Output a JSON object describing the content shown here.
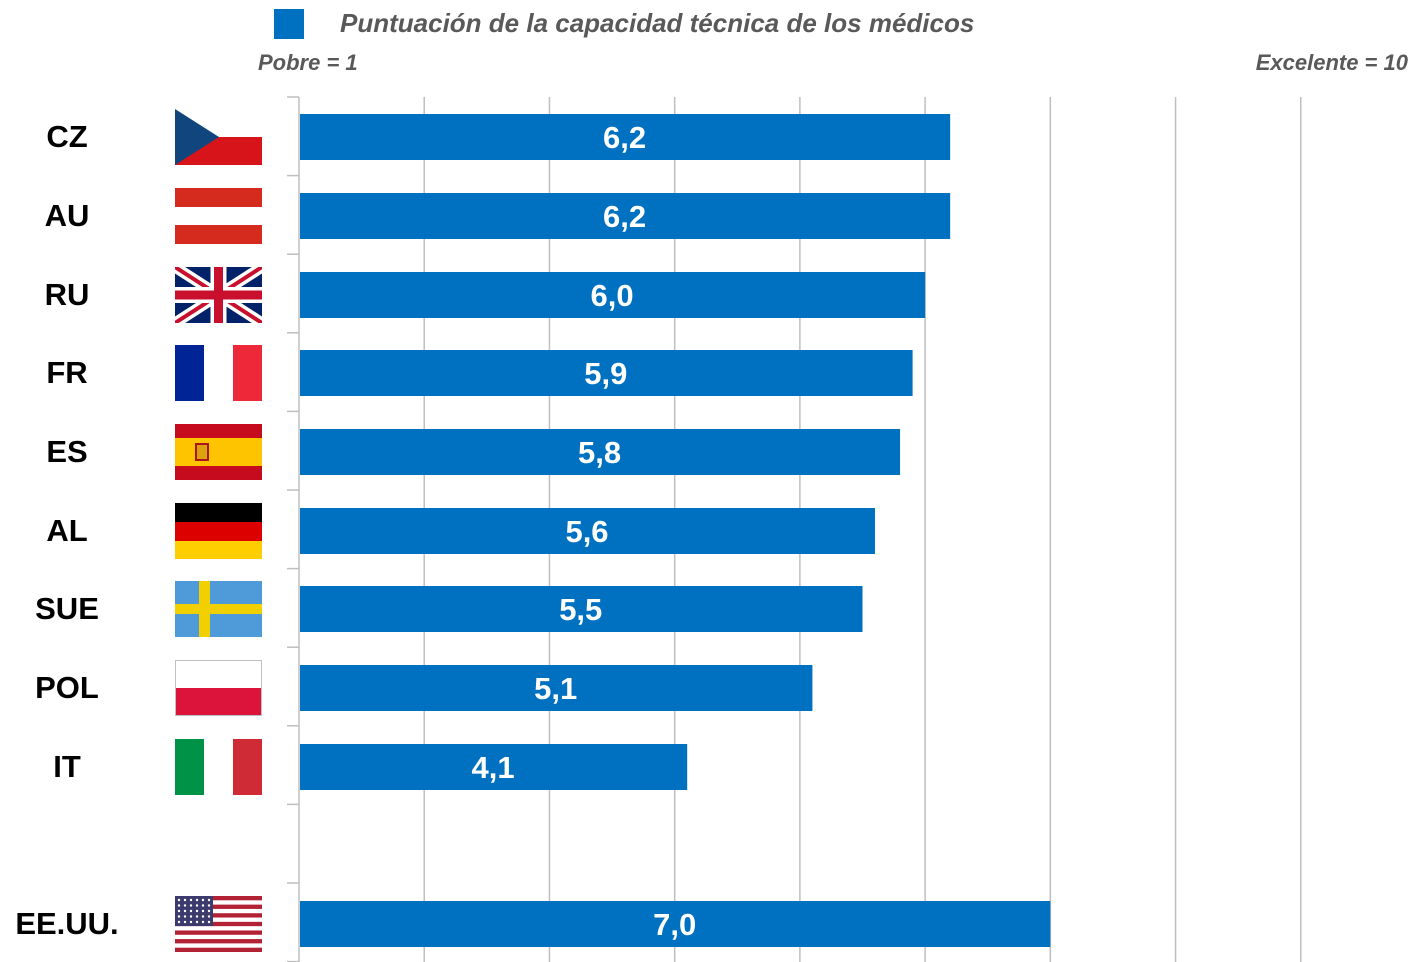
{
  "legend": {
    "label": "Puntuación de la capacidad técnica de los médicos",
    "color": "#0070C0"
  },
  "scale": {
    "min_label": "Pobre = 1",
    "max_label": "Excelente = 10"
  },
  "chart_data": {
    "type": "bar",
    "orientation": "horizontal",
    "series": [
      {
        "name": "Puntuación de la capacidad técnica de los médicos",
        "color": "#0070C0"
      }
    ],
    "categories": [
      "CZ",
      "AU",
      "RU",
      "FR",
      "ES",
      "AL",
      "SUE",
      "POL",
      "IT",
      "EE.UU."
    ],
    "flags": [
      "czech-republic-flag",
      "austria-flag",
      "united-kingdom-flag",
      "france-flag",
      "spain-flag",
      "germany-flag",
      "sweden-flag",
      "poland-flag",
      "italy-flag",
      "united-states-flag"
    ],
    "values": [
      6.2,
      6.2,
      6.0,
      5.9,
      5.8,
      5.6,
      5.5,
      5.1,
      4.1,
      7.0
    ],
    "value_labels": [
      "6,2",
      "6,2",
      "6,0",
      "5,9",
      "5,8",
      "5,6",
      "5,5",
      "5,1",
      "4,1",
      "7,0"
    ],
    "xlim": [
      1,
      10
    ],
    "grid": true,
    "legend_position": "top"
  }
}
